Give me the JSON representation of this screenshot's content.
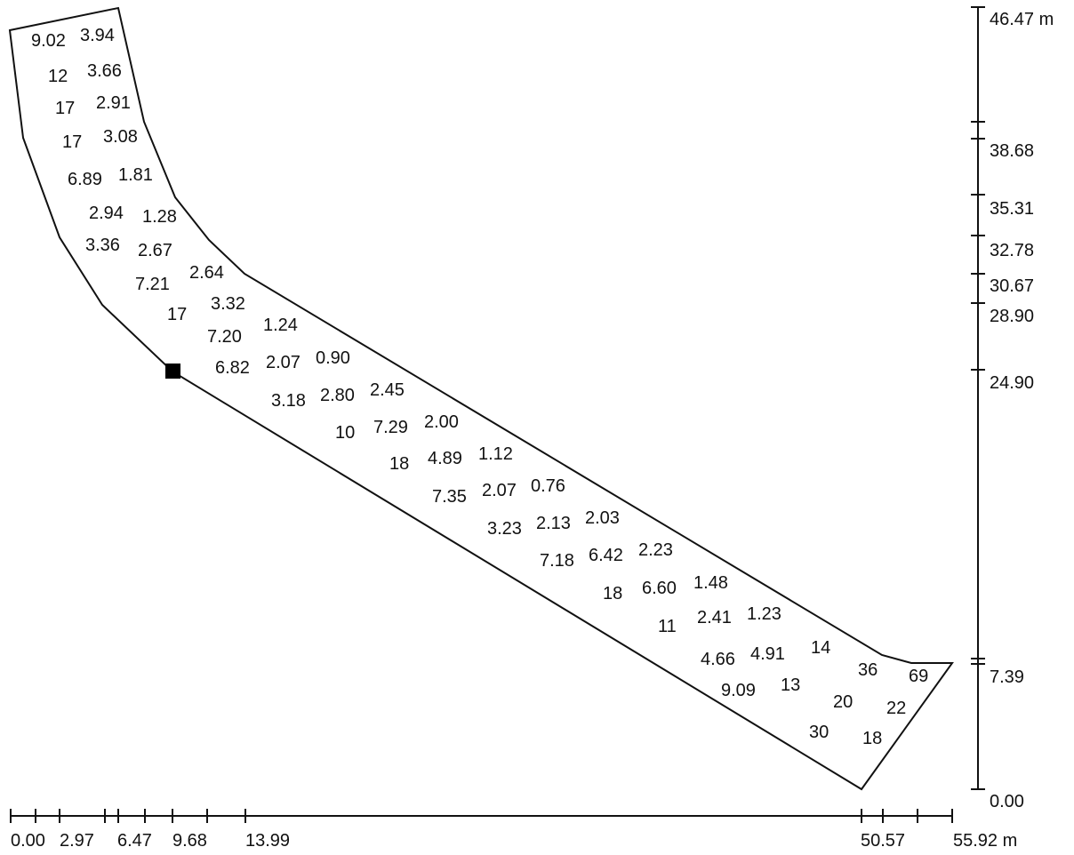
{
  "cell_values": [
    "9.02",
    "3.94",
    "12",
    "3.66",
    "17",
    "2.91",
    "17",
    "3.08",
    "6.89",
    "1.81",
    "2.94",
    "1.28",
    "3.36",
    "2.67",
    "7.21",
    "2.64",
    "17",
    "3.32",
    "1.24",
    "7.20",
    "6.82",
    "2.07",
    "0.90",
    "3.18",
    "2.80",
    "2.45",
    "10",
    "7.29",
    "2.00",
    "18",
    "4.89",
    "1.12",
    "7.35",
    "2.07",
    "0.76",
    "3.23",
    "2.13",
    "2.03",
    "7.18",
    "6.42",
    "2.23",
    "18",
    "6.60",
    "1.48",
    "11",
    "2.41",
    "1.23",
    "14",
    "4.66",
    "4.91",
    "36",
    "69",
    "9.09",
    "13",
    "20",
    "22",
    "30",
    "18"
  ],
  "x_axis": {
    "labels": [
      "0.00",
      "2.97",
      "6.47",
      "9.68",
      "13.99",
      "50.57",
      "55.92 m"
    ]
  },
  "y_axis": {
    "labels": [
      "46.47 m",
      "38.68",
      "35.31",
      "32.78",
      "30.67",
      "28.90",
      "24.90",
      "7.39",
      "0.00"
    ]
  },
  "colors": {
    "line": "#111111",
    "background": "#ffffff",
    "marker": "#000000"
  }
}
